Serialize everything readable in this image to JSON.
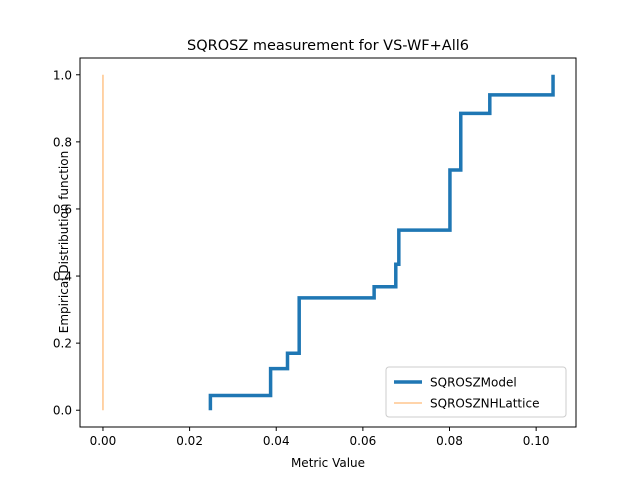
{
  "chart_data": {
    "type": "line",
    "title": "SQROSZ measurement for VS-WF+All6",
    "xlabel": "Metric Value",
    "ylabel": "Empirical Distribution function",
    "xlim": [
      -0.0053,
      0.1092
    ],
    "ylim": [
      -0.05,
      1.05
    ],
    "xticks": [
      0.0,
      0.02,
      0.04,
      0.06,
      0.08,
      0.1
    ],
    "xtick_labels": [
      "0.00",
      "0.02",
      "0.04",
      "0.06",
      "0.08",
      "0.10"
    ],
    "yticks": [
      0.0,
      0.2,
      0.4,
      0.6,
      0.8,
      1.0
    ],
    "ytick_labels": [
      "0.0",
      "0.2",
      "0.4",
      "0.6",
      "0.8",
      "1.0"
    ],
    "grid": false,
    "legend_position": "bottom-right",
    "series": [
      {
        "name": "SQROSZModel",
        "color": "#1f77b4",
        "style": "thick-step",
        "x": [
          0.0248,
          0.0248,
          0.0387,
          0.0387,
          0.0426,
          0.0426,
          0.0453,
          0.0453,
          0.0626,
          0.0626,
          0.0676,
          0.0676,
          0.0683,
          0.0683,
          0.0801,
          0.0801,
          0.0826,
          0.0826,
          0.0893,
          0.0893,
          0.1039,
          0.1039
        ],
        "y": [
          0.0,
          0.044,
          0.044,
          0.124,
          0.124,
          0.17,
          0.17,
          0.335,
          0.335,
          0.368,
          0.368,
          0.435,
          0.435,
          0.537,
          0.537,
          0.716,
          0.716,
          0.885,
          0.885,
          0.94,
          0.94,
          1.0
        ]
      },
      {
        "name": "SQROSZNHLattice",
        "color": "#ffbb78",
        "style": "thin",
        "x": [
          0.0,
          0.0
        ],
        "y": [
          0.0,
          1.0
        ]
      }
    ]
  }
}
